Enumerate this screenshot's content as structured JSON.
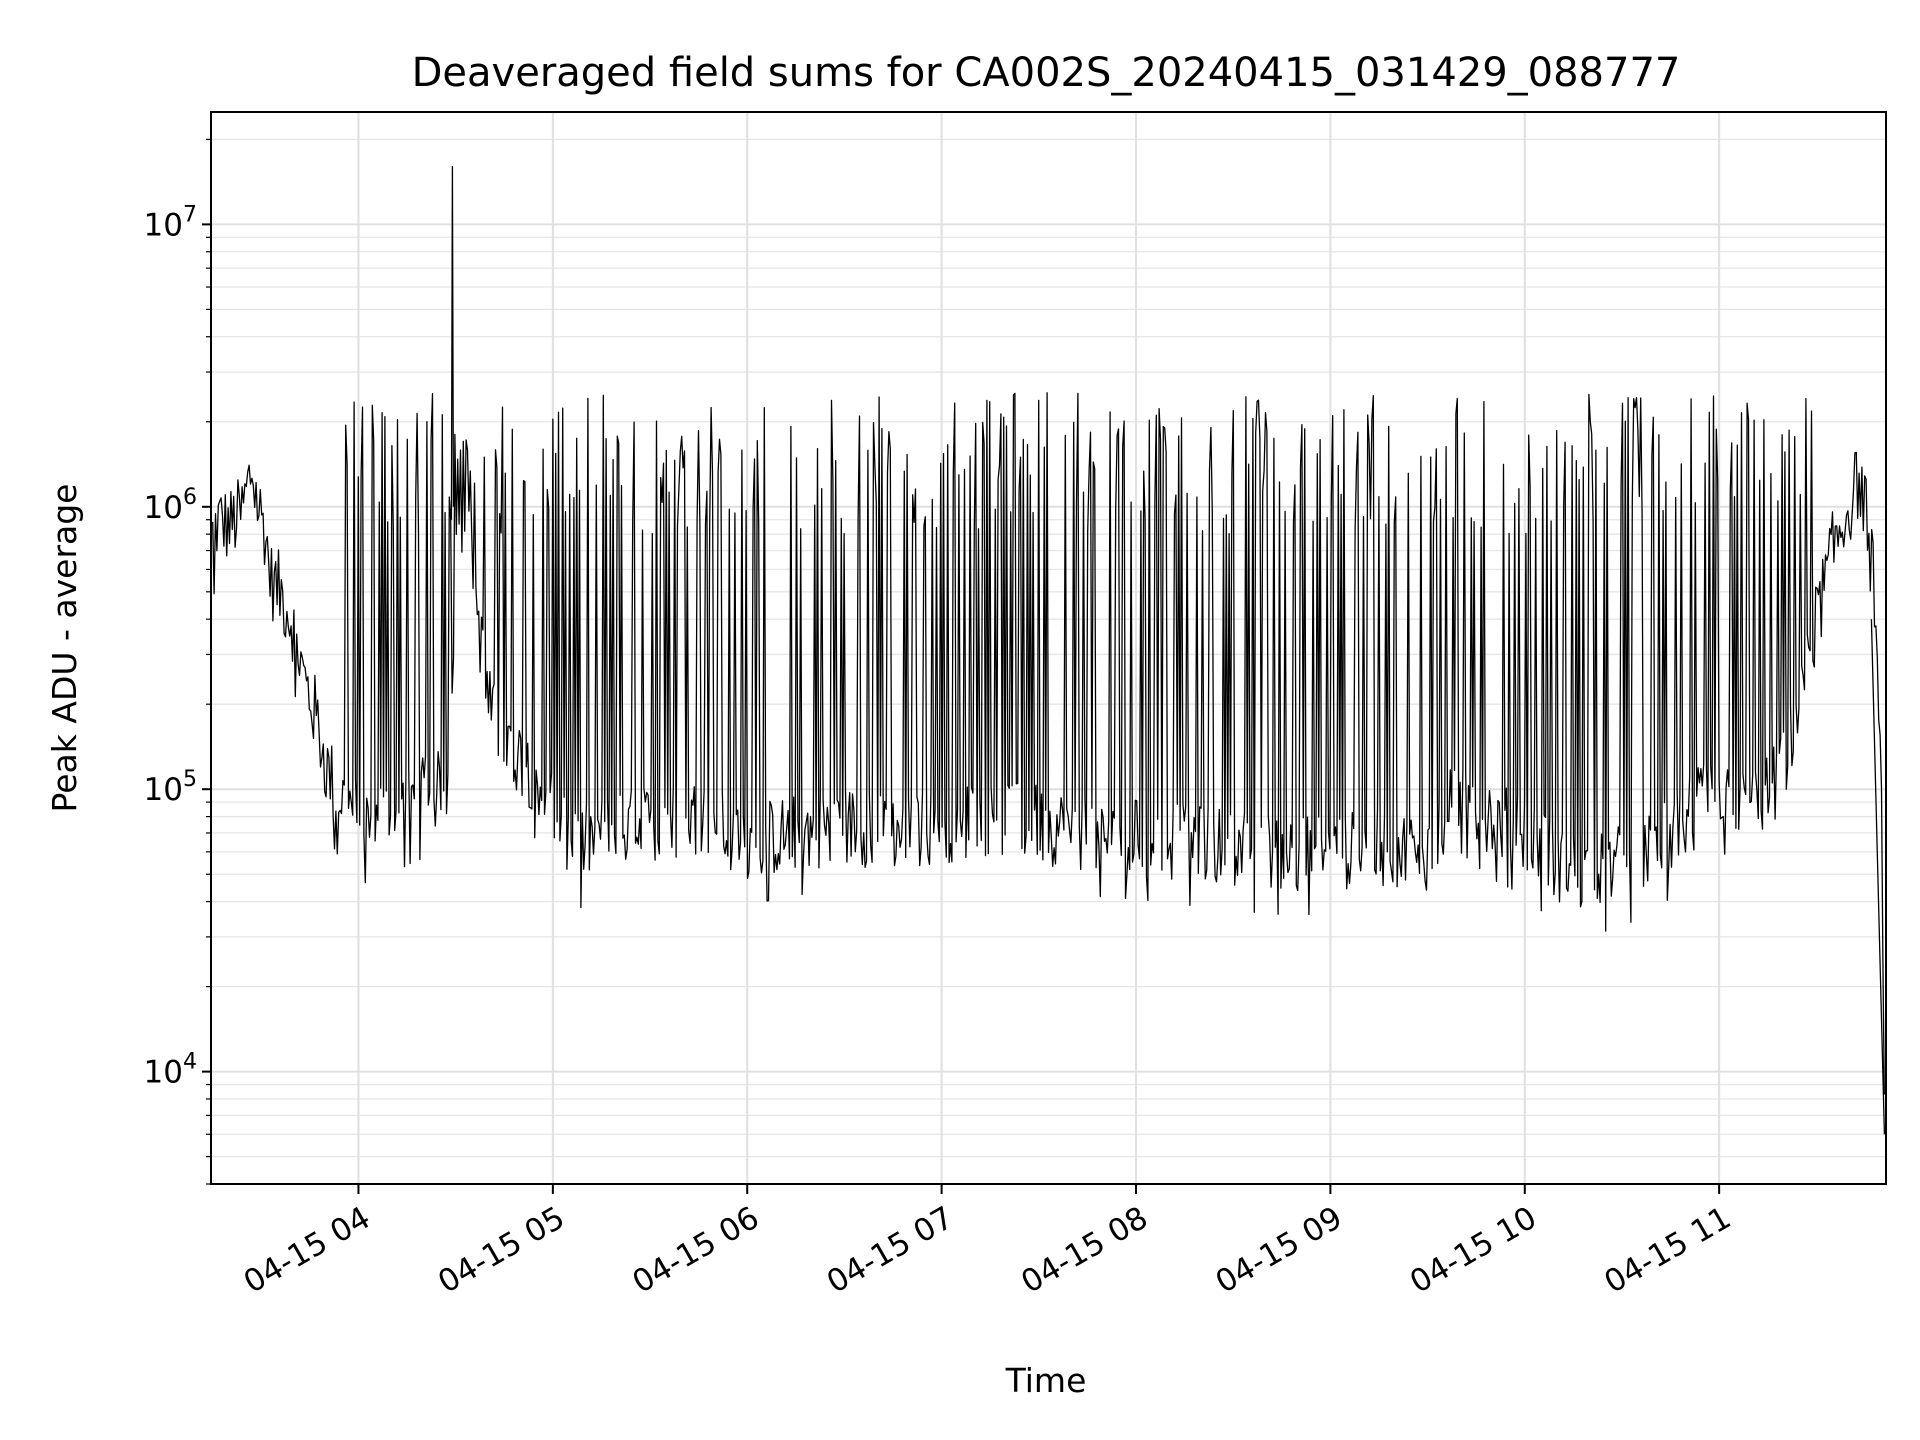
{
  "chart_data": {
    "type": "line",
    "title": "Deaveraged field sums for CA002S_20240415_031429_088777",
    "xlabel": "Time",
    "ylabel": "Peak ADU - average",
    "yscale": "log",
    "ylim": [
      4000,
      25000000
    ],
    "xlim": [
      "2024-04-15 03:14:29",
      "2024-04-15 11:51:30"
    ],
    "grid": true,
    "line_color": "#000000",
    "x_ticks": [
      {
        "t": "2024-04-15 04:00",
        "label": "04-15 04"
      },
      {
        "t": "2024-04-15 05:00",
        "label": "04-15 05"
      },
      {
        "t": "2024-04-15 06:00",
        "label": "04-15 06"
      },
      {
        "t": "2024-04-15 07:00",
        "label": "04-15 07"
      },
      {
        "t": "2024-04-15 08:00",
        "label": "04-15 08"
      },
      {
        "t": "2024-04-15 09:00",
        "label": "04-15 09"
      },
      {
        "t": "2024-04-15 10:00",
        "label": "04-15 10"
      },
      {
        "t": "2024-04-15 11:00",
        "label": "04-15 11"
      }
    ],
    "y_ticks": [
      {
        "value": 10000,
        "base": "10",
        "exp": "4"
      },
      {
        "value": 100000,
        "base": "10",
        "exp": "5"
      },
      {
        "value": 1000000,
        "base": "10",
        "exp": "6"
      },
      {
        "value": 10000000,
        "base": "10",
        "exp": "7"
      }
    ],
    "series": [
      {
        "x": [
          "2024-04-15 03:15",
          "2024-04-15 03:17",
          "2024-04-15 03:20",
          "2024-04-15 03:24",
          "2024-04-15 03:27",
          "2024-04-15 03:29",
          "2024-04-15 03:31",
          "2024-04-15 03:33",
          "2024-04-15 03:36",
          "2024-04-15 03:40",
          "2024-04-15 03:43",
          "2024-04-15 03:47",
          "2024-04-15 03:50",
          "2024-04-15 03:53",
          "2024-04-15 03:56",
          "2024-04-15 03:58",
          "2024-04-15 04:00",
          "2024-04-15 04:05",
          "2024-04-15 04:10",
          "2024-04-15 04:15",
          "2024-04-15 04:20",
          "2024-04-15 04:25",
          "2024-04-15 04:28",
          "2024-04-15 04:30",
          "2024-04-15 04:33",
          "2024-04-15 04:36",
          "2024-04-15 04:40",
          "2024-04-15 04:45",
          "2024-04-15 04:50",
          "2024-04-15 04:55",
          "2024-04-15 05:00",
          "2024-04-15 05:05",
          "2024-04-15 05:15",
          "2024-04-15 05:30",
          "2024-04-15 05:45",
          "2024-04-15 06:00",
          "2024-04-15 06:15",
          "2024-04-15 06:30",
          "2024-04-15 06:45",
          "2024-04-15 07:00",
          "2024-04-15 07:15",
          "2024-04-15 07:30",
          "2024-04-15 07:45",
          "2024-04-15 08:00",
          "2024-04-15 08:15",
          "2024-04-15 08:30",
          "2024-04-15 08:45",
          "2024-04-15 09:00",
          "2024-04-15 09:15",
          "2024-04-15 09:30",
          "2024-04-15 09:40",
          "2024-04-15 09:50",
          "2024-04-15 10:00",
          "2024-04-15 10:10",
          "2024-04-15 10:20",
          "2024-04-15 10:30",
          "2024-04-15 10:40",
          "2024-04-15 10:50",
          "2024-04-15 11:00",
          "2024-04-15 11:10",
          "2024-04-15 11:15",
          "2024-04-15 11:20",
          "2024-04-15 11:25",
          "2024-04-15 11:30",
          "2024-04-15 11:35",
          "2024-04-15 11:40",
          "2024-04-15 11:43",
          "2024-04-15 11:45",
          "2024-04-15 11:48",
          "2024-04-15 11:50",
          "2024-04-15 11:51"
        ],
        "y": [
          800000,
          900000,
          850000,
          950000,
          1350000,
          1000000,
          850000,
          550000,
          500000,
          380000,
          250000,
          180000,
          120000,
          100000,
          90000,
          85000,
          80000,
          75000,
          82000,
          90000,
          95000,
          100000,
          110000,
          700000,
          900000,
          500000,
          200000,
          150000,
          130000,
          110000,
          90000,
          60000,
          70000,
          75000,
          80000,
          65000,
          70000,
          75000,
          70000,
          75000,
          80000,
          75000,
          70000,
          68000,
          65000,
          62000,
          60000,
          60000,
          62000,
          60000,
          100000,
          80000,
          70000,
          55000,
          50000,
          55000,
          60000,
          80000,
          100000,
          90000,
          95000,
          120000,
          200000,
          400000,
          700000,
          1000000,
          1250000,
          1000000,
          500000,
          100000,
          6000
        ]
      }
    ]
  }
}
